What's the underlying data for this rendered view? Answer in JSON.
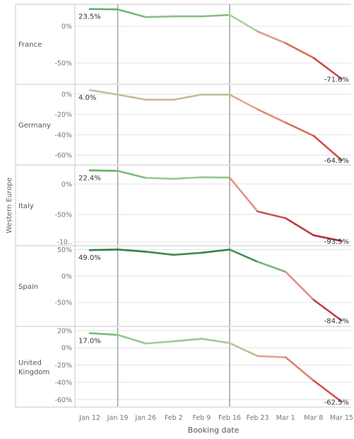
{
  "chart_data": {
    "type": "line",
    "group_label": "Western Europe",
    "xlabel": "Booking date",
    "x": [
      "Jan 12",
      "Jan 19",
      "Jan 26",
      "Feb 2",
      "Feb 9",
      "Feb 16",
      "Feb 23",
      "Mar 1",
      "Mar 8",
      "Mar 15"
    ],
    "reference_lines": [
      "Jan 19",
      "Feb 16"
    ],
    "grid": "horizontal",
    "panels": [
      {
        "name": "France",
        "name_lines": [
          "France"
        ],
        "ylim": [
          -78,
          30
        ],
        "yticks": [
          {
            "v": 0,
            "t": "0%"
          },
          {
            "v": -50,
            "t": "-50%"
          }
        ],
        "values": [
          23.5,
          23.0,
          12.5,
          13.5,
          13.5,
          15.5,
          -7.0,
          -23.0,
          -43.0,
          -71.6
        ],
        "first_label": "23.5%",
        "last_label": "-71.6%"
      },
      {
        "name": "Germany",
        "name_lines": [
          "Germany"
        ],
        "ylim": [
          -69,
          9
        ],
        "yticks": [
          {
            "v": 0,
            "t": "0%"
          },
          {
            "v": -20,
            "t": "-20%"
          },
          {
            "v": -40,
            "t": "-40%"
          },
          {
            "v": -60,
            "t": "-60%"
          }
        ],
        "values": [
          4.0,
          -0.5,
          -5.5,
          -5.5,
          -0.5,
          -0.5,
          -15.0,
          -28.0,
          -41.0,
          -64.9
        ],
        "first_label": "4.0%",
        "last_label": "-64.9%"
      },
      {
        "name": "Italy",
        "name_lines": [
          "Italy"
        ],
        "ylim": [
          -100,
          30
        ],
        "yticks": [
          {
            "v": 0,
            "t": "0%"
          },
          {
            "v": -50,
            "t": "-50%"
          },
          {
            "v": -95,
            "t": "-10.."
          }
        ],
        "values": [
          22.4,
          21.5,
          10.0,
          8.5,
          11.0,
          10.5,
          -45.0,
          -56.0,
          -84.0,
          -93.5
        ],
        "first_label": "22.4%",
        "last_label": "-93.5%"
      },
      {
        "name": "Spain",
        "name_lines": [
          "Spain"
        ],
        "ylim": [
          -94,
          56
        ],
        "yticks": [
          {
            "v": 50,
            "t": "50%"
          },
          {
            "v": 0,
            "t": "0%"
          },
          {
            "v": -50,
            "t": "-50%"
          }
        ],
        "values": [
          49.0,
          50.0,
          46.0,
          40.0,
          44.0,
          50.0,
          27.0,
          8.0,
          -45.0,
          -84.2
        ],
        "first_label": "49.0%",
        "last_label": "-84.2%"
      },
      {
        "name": "United Kingdom",
        "name_lines": [
          "United",
          "Kingdom"
        ],
        "ylim": [
          -68,
          24
        ],
        "yticks": [
          {
            "v": 20,
            "t": "20%"
          },
          {
            "v": 0,
            "t": "0%"
          },
          {
            "v": -20,
            "t": "-20%"
          },
          {
            "v": -40,
            "t": "-40%"
          },
          {
            "v": -60,
            "t": "-60%"
          }
        ],
        "values": [
          17.0,
          15.0,
          5.0,
          7.5,
          10.5,
          5.5,
          -9.5,
          -11.0,
          -38.0,
          -62.5
        ],
        "first_label": "17.0%",
        "last_label": "-62.5%"
      }
    ],
    "colors": {
      "dark_green": "#2e7d45",
      "green": "#5aa860",
      "light_green": "#a6d39a",
      "pink": "#e3a494",
      "red": "#d6604d",
      "dark_red": "#b2243e",
      "grid": "#e3e3e3",
      "ref_line": "#a0a0a0",
      "border": "#c8c8c8"
    }
  }
}
